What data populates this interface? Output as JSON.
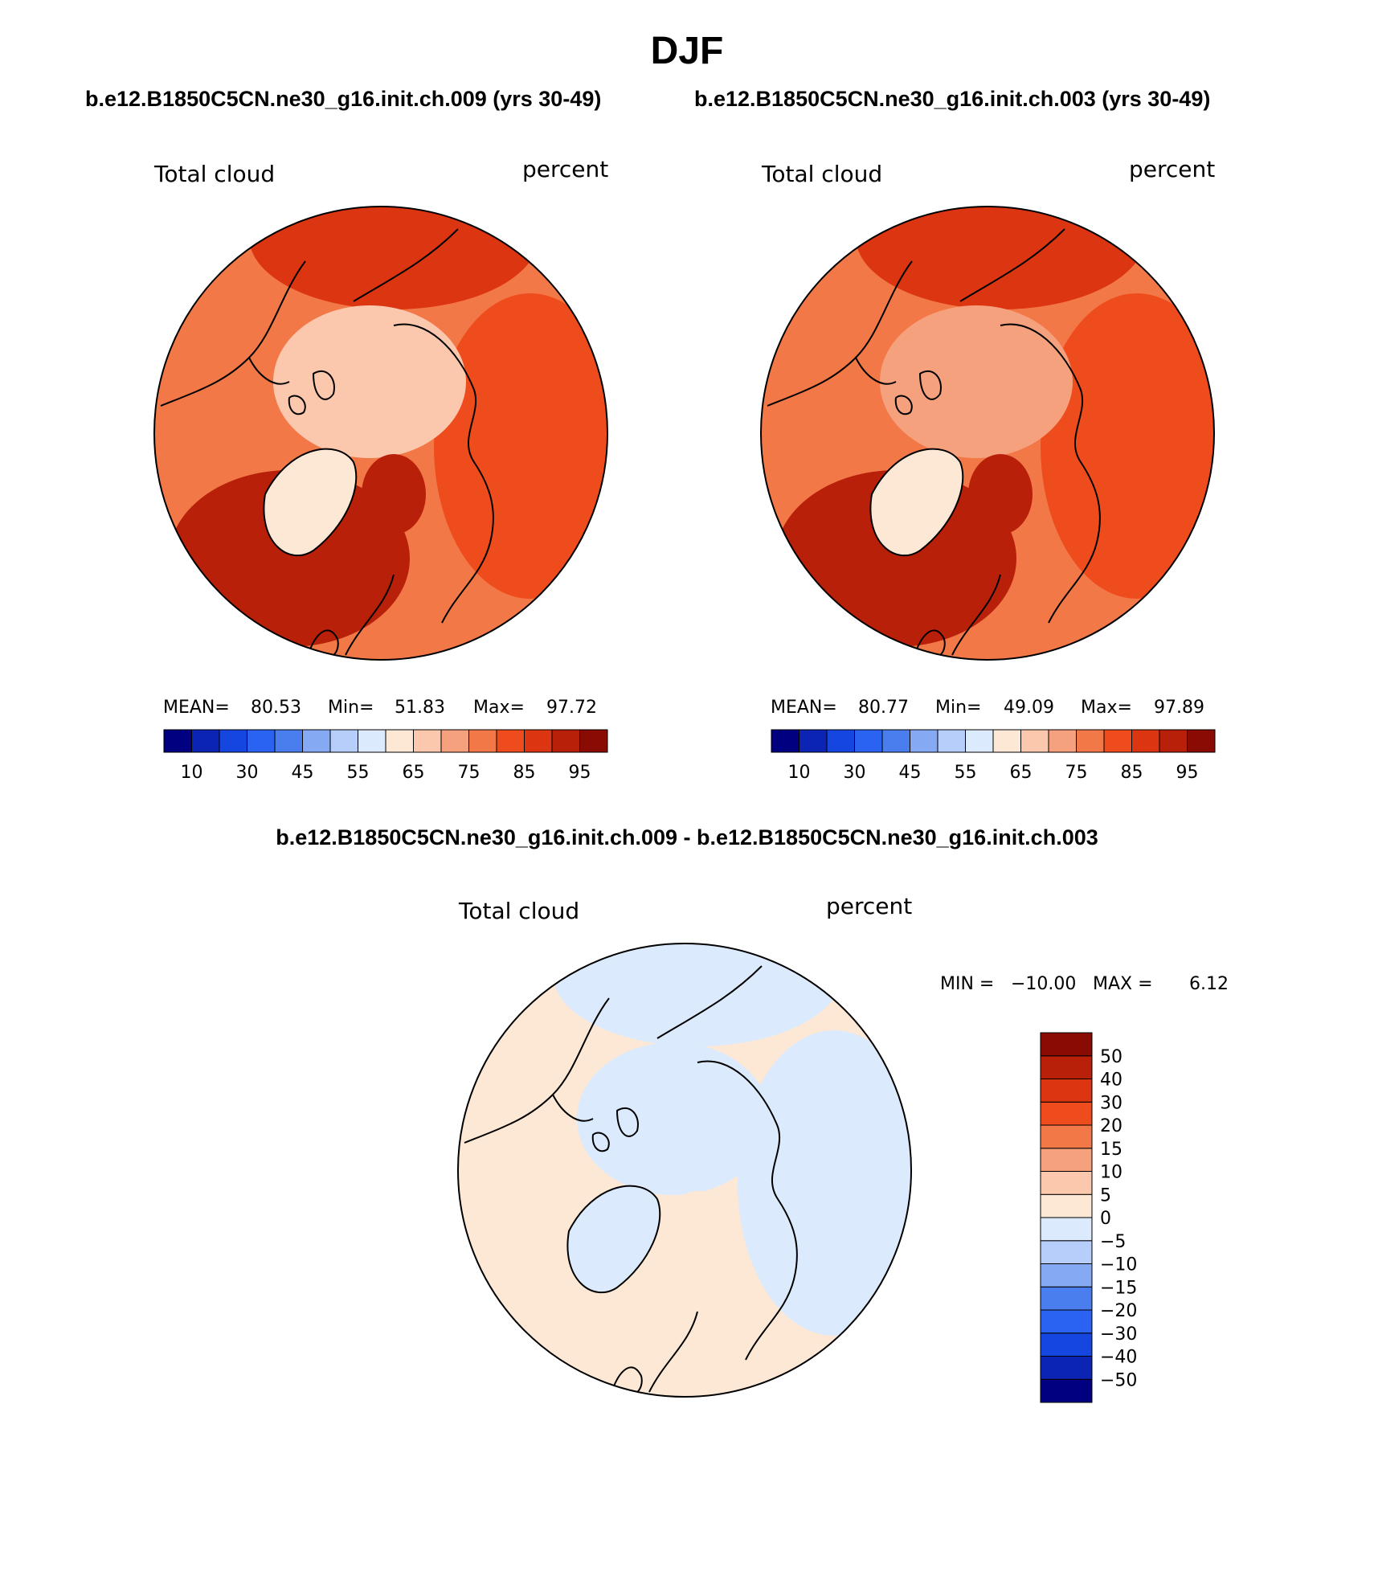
{
  "figure": {
    "title": "DJF",
    "case_a": "b.e12.B1850C5CN.ne30_g16.init.ch.009 (yrs 30-49)",
    "case_b": "b.e12.B1850C5CN.ne30_g16.init.ch.003 (yrs 30-49)",
    "diff_title": "b.e12.B1850C5CN.ne30_g16.init.ch.009 - b.e12.B1850C5CN.ne30_g16.init.ch.003"
  },
  "colors": {
    "abs_scale": [
      "#000080",
      "#0b24b4",
      "#1646e0",
      "#2a62f2",
      "#4a7eee",
      "#86a9f3",
      "#b6cef9",
      "#dbeafc",
      "#fde8d6",
      "#fbc7ad",
      "#f6a17e",
      "#f37848",
      "#ef4c1e",
      "#dc3511",
      "#b8200a",
      "#8a0a04"
    ],
    "diff_scale": [
      "#000080",
      "#0b24b4",
      "#1646e0",
      "#2a62f2",
      "#4a7eee",
      "#86a9f3",
      "#b6cef9",
      "#dbeafc",
      "#fde8d6",
      "#fbc7ad",
      "#f6a17e",
      "#f37848",
      "#ef4c1e",
      "#dc3511",
      "#b8200a",
      "#8a0a04"
    ],
    "coast": "#000000"
  },
  "chart_data": [
    {
      "type": "heatmap",
      "projection": "north-polar-stereographic",
      "title_left": "Total cloud",
      "title_right": "percent",
      "stats": {
        "mean_label": "MEAN=",
        "mean": "80.53",
        "min_label": "Min=",
        "min": "51.83",
        "max_label": "Max=",
        "max": "97.72"
      },
      "colorbar_ticks": [
        "10",
        "30",
        "45",
        "55",
        "65",
        "75",
        "85",
        "95"
      ],
      "field_levels": {
        "base": 11,
        "arctic": 9,
        "greenland": 8,
        "north_atlantic": 14,
        "pacific": 13,
        "eurasia": 12
      }
    },
    {
      "type": "heatmap",
      "projection": "north-polar-stereographic",
      "title_left": "Total cloud",
      "title_right": "percent",
      "stats": {
        "mean_label": "MEAN=",
        "mean": "80.77",
        "min_label": "Min=",
        "min": "49.09",
        "max_label": "Max=",
        "max": "97.89"
      },
      "colorbar_ticks": [
        "10",
        "30",
        "45",
        "55",
        "65",
        "75",
        "85",
        "95"
      ],
      "field_levels": {
        "base": 11,
        "arctic": 10,
        "greenland": 8,
        "north_atlantic": 14,
        "pacific": 13,
        "eurasia": 12
      }
    },
    {
      "type": "heatmap",
      "projection": "north-polar-stereographic",
      "title_left": "Total cloud",
      "title_right": "percent",
      "stats": {
        "min_label": "MIN =",
        "min": "−10.00",
        "max_label": "MAX =",
        "max": "6.12"
      },
      "colorbar_ticks": [
        "50",
        "40",
        "30",
        "20",
        "15",
        "10",
        "5",
        "0",
        "−5",
        "−10",
        "−15",
        "−20",
        "−30",
        "−40",
        "−50"
      ],
      "field_levels": {
        "base": 8,
        "arctic": 7,
        "greenland": 7,
        "north_atlantic": 8,
        "pacific": 7,
        "eurasia": 7
      }
    }
  ]
}
